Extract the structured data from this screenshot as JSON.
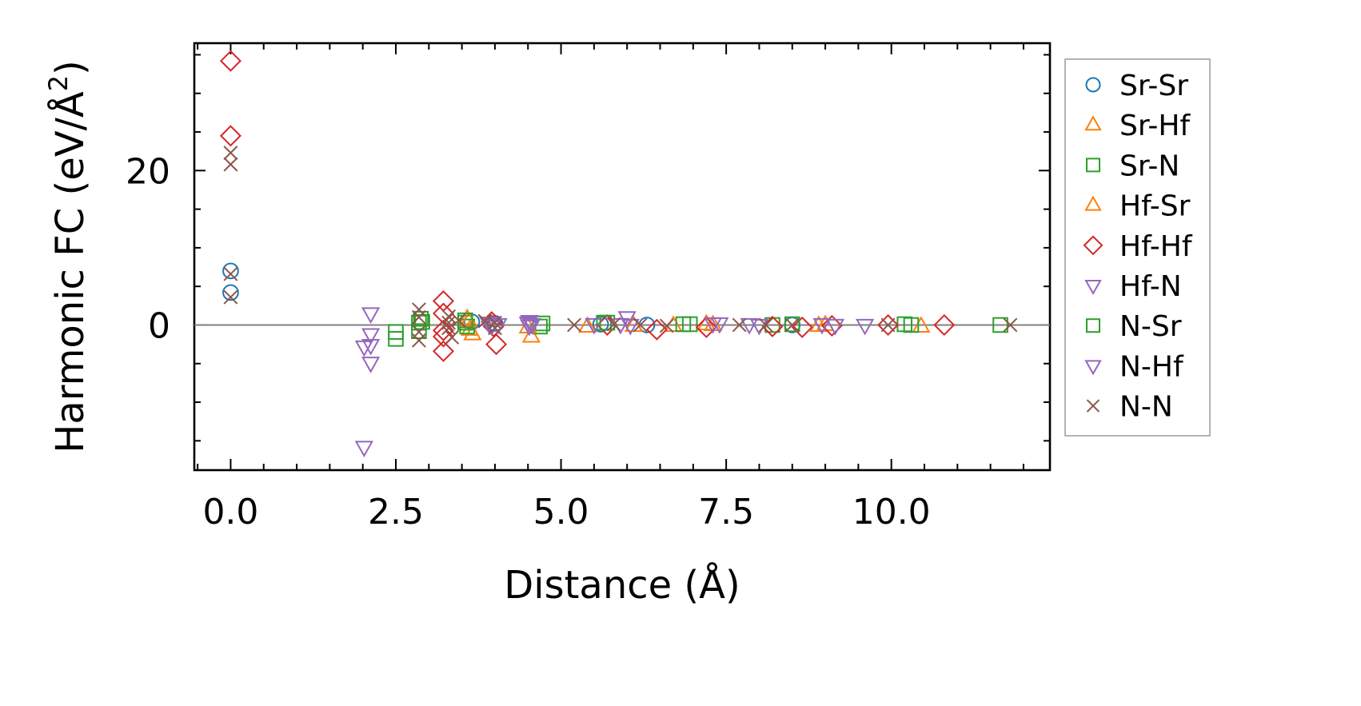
{
  "chart_data": {
    "type": "scatter",
    "xlabel": "Distance (Å)",
    "ylabel_main": "Harmonic FC (eV/Å",
    "ylabel_sup": "2",
    "ylabel_close": ")",
    "xlim": [
      -0.55,
      12.4
    ],
    "ylim": [
      -18.8,
      36.5
    ],
    "xticks": [
      0.0,
      2.5,
      5.0,
      7.5,
      10.0
    ],
    "xtick_labels": [
      "0.0",
      "2.5",
      "5.0",
      "7.5",
      "10.0"
    ],
    "yticks": [
      0,
      20
    ],
    "ytick_labels": [
      "0",
      "20"
    ],
    "zero_line": true,
    "legend_position": "right",
    "series": [
      {
        "name": "Sr-Sr",
        "marker": "circle",
        "color": "#1f77b4",
        "points": [
          [
            0,
            7
          ],
          [
            0,
            4.2
          ],
          [
            3.65,
            0.4
          ],
          [
            4.0,
            0.2
          ],
          [
            5.6,
            0.1
          ],
          [
            6.3,
            0.0
          ],
          [
            8.5,
            0.0
          ]
        ]
      },
      {
        "name": "Sr-Hf",
        "marker": "triangle-up",
        "color": "#ff7f0e",
        "points": [
          [
            3.58,
            0.8
          ],
          [
            3.62,
            -0.6
          ],
          [
            3.66,
            -1.2
          ],
          [
            4.55,
            -1.5
          ],
          [
            5.4,
            -0.2
          ],
          [
            6.7,
            -0.1
          ],
          [
            7.2,
            0.1
          ],
          [
            8.9,
            -0.1
          ],
          [
            10.45,
            -0.2
          ]
        ]
      },
      {
        "name": "Sr-N",
        "marker": "square",
        "color": "#2ca02c",
        "points": [
          [
            2.5,
            -1.8
          ],
          [
            2.5,
            -0.9
          ],
          [
            2.85,
            -0.8
          ],
          [
            2.85,
            0.3
          ],
          [
            2.88,
            0.8
          ],
          [
            3.55,
            0.3
          ],
          [
            3.58,
            -0.2
          ],
          [
            4.68,
            -0.2
          ],
          [
            4.72,
            0.2
          ],
          [
            5.65,
            0.3
          ],
          [
            6.95,
            0.1
          ],
          [
            8.2,
            0.0
          ],
          [
            10.2,
            0.1
          ],
          [
            11.65,
            0.0
          ]
        ]
      },
      {
        "name": "Hf-Sr",
        "marker": "triangle-up",
        "color": "#ff7f0e",
        "points": [
          [
            3.6,
            0.5
          ],
          [
            4.5,
            -0.3
          ],
          [
            6.1,
            -0.1
          ],
          [
            7.3,
            0.0
          ],
          [
            9.0,
            0.0
          ]
        ]
      },
      {
        "name": "Hf-Hf",
        "marker": "diamond",
        "color": "#d62728",
        "points": [
          [
            0,
            34.2
          ],
          [
            0,
            24.5
          ],
          [
            3.22,
            3.1
          ],
          [
            3.22,
            1.5
          ],
          [
            3.22,
            -0.7
          ],
          [
            3.22,
            -1.5
          ],
          [
            3.22,
            -3.4
          ],
          [
            3.95,
            0.4
          ],
          [
            3.98,
            -0.2
          ],
          [
            4.02,
            -2.5
          ],
          [
            5.7,
            0.0
          ],
          [
            6.45,
            -0.6
          ],
          [
            7.2,
            -0.3
          ],
          [
            8.2,
            -0.2
          ],
          [
            8.65,
            -0.3
          ],
          [
            9.1,
            -0.1
          ],
          [
            9.95,
            0.0
          ],
          [
            10.8,
            0.0
          ]
        ]
      },
      {
        "name": "Hf-N",
        "marker": "triangle-down",
        "color": "#9467bd",
        "points": [
          [
            2.02,
            -2.8
          ],
          [
            2.02,
            -15.8
          ],
          [
            2.12,
            1.5
          ],
          [
            2.12,
            -1.2
          ],
          [
            2.12,
            -2.6
          ],
          [
            2.12,
            -4.9
          ],
          [
            4.52,
            0.5
          ],
          [
            4.52,
            -0.1
          ],
          [
            5.5,
            0.1
          ],
          [
            6.0,
            1.0
          ],
          [
            6.05,
            0.0
          ],
          [
            7.3,
            0.2
          ],
          [
            7.85,
            0.1
          ],
          [
            9.6,
            0.0
          ]
        ]
      },
      {
        "name": "N-Sr",
        "marker": "square",
        "color": "#2ca02c",
        "points": [
          [
            2.9,
            0.4
          ],
          [
            3.55,
            0.6
          ],
          [
            5.7,
            0.3
          ],
          [
            6.85,
            0.1
          ],
          [
            8.5,
            0.1
          ],
          [
            10.3,
            0.0
          ]
        ]
      },
      {
        "name": "N-Hf",
        "marker": "triangle-down",
        "color": "#9467bd",
        "points": [
          [
            3.9,
            0.3
          ],
          [
            3.95,
            -0.1
          ],
          [
            4.05,
            0.1
          ],
          [
            4.5,
            0.3
          ],
          [
            4.56,
            0.1
          ],
          [
            5.9,
            0.1
          ],
          [
            7.4,
            0.2
          ],
          [
            8.0,
            0.0
          ],
          [
            8.95,
            0.1
          ],
          [
            9.15,
            0.0
          ]
        ]
      },
      {
        "name": "N-N",
        "marker": "x",
        "color": "#8c564b",
        "points": [
          [
            0,
            22.3
          ],
          [
            0,
            20.8
          ],
          [
            0,
            6.6
          ],
          [
            0,
            3.6
          ],
          [
            2.85,
            2.0
          ],
          [
            2.85,
            1.0
          ],
          [
            2.85,
            -0.9
          ],
          [
            2.85,
            -2.0
          ],
          [
            3.3,
            1.1
          ],
          [
            3.3,
            0.3
          ],
          [
            3.3,
            -0.4
          ],
          [
            3.35,
            -1.6
          ],
          [
            3.45,
            0.6
          ],
          [
            3.85,
            0.5
          ],
          [
            4.0,
            0.3
          ],
          [
            4.0,
            -0.4
          ],
          [
            5.2,
            0.0
          ],
          [
            5.8,
            0.1
          ],
          [
            6.2,
            0.0
          ],
          [
            6.6,
            -0.1
          ],
          [
            7.7,
            0.0
          ],
          [
            8.1,
            0.0
          ],
          [
            8.5,
            0.0
          ],
          [
            9.95,
            0.0
          ],
          [
            11.8,
            0.0
          ]
        ]
      }
    ]
  }
}
